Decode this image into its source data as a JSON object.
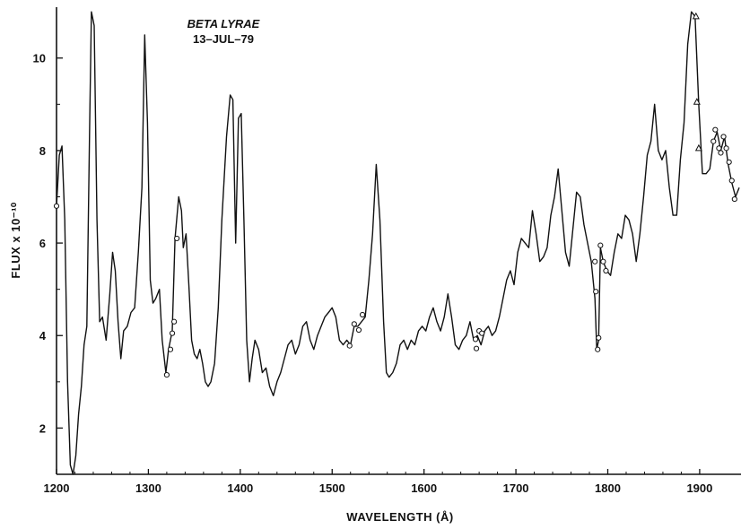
{
  "chart_data": {
    "type": "line",
    "title": "",
    "annotation": {
      "line1": "BETA LYRAE",
      "line2": "13–JUL–79"
    },
    "xlabel": "WAVELENGTH (Å)",
    "ylabel": "FLUX x 10⁻¹⁰",
    "xlim": [
      1200,
      1945
    ],
    "ylim": [
      1,
      11.1
    ],
    "xticks": [
      1200,
      1300,
      1400,
      1500,
      1600,
      1700,
      1800,
      1900
    ],
    "xtick_labels": [
      "1200",
      "1300",
      "1400",
      "1500",
      "1600",
      "1700",
      "1800",
      "1900"
    ],
    "yticks": [
      2,
      4,
      6,
      8,
      10
    ],
    "ytick_labels": [
      "2",
      "4",
      "6",
      "8",
      "10"
    ],
    "grid": false,
    "series": [
      {
        "values": [
          [
            1200,
            6.8
          ],
          [
            1203,
            7.9
          ],
          [
            1206,
            8.1
          ],
          [
            1209,
            6.5
          ],
          [
            1212,
            3.0
          ],
          [
            1215,
            1.2
          ],
          [
            1218,
            0.9
          ],
          [
            1221,
            1.4
          ],
          [
            1224,
            2.3
          ],
          [
            1227,
            2.9
          ],
          [
            1230,
            3.8
          ],
          [
            1233,
            4.2
          ],
          [
            1236,
            8.5
          ],
          [
            1238,
            11.0
          ],
          [
            1241,
            10.7
          ],
          [
            1244,
            6.5
          ],
          [
            1247,
            4.3
          ],
          [
            1250,
            4.4
          ],
          [
            1254,
            3.9
          ],
          [
            1258,
            4.9
          ],
          [
            1261,
            5.8
          ],
          [
            1264,
            5.4
          ],
          [
            1267,
            4.3
          ],
          [
            1270,
            3.5
          ],
          [
            1273,
            4.1
          ],
          [
            1277,
            4.2
          ],
          [
            1281,
            4.5
          ],
          [
            1285,
            4.6
          ],
          [
            1289,
            5.8
          ],
          [
            1293,
            7.2
          ],
          [
            1296,
            10.5
          ],
          [
            1299,
            8.6
          ],
          [
            1302,
            5.2
          ],
          [
            1305,
            4.7
          ],
          [
            1308,
            4.8
          ],
          [
            1312,
            5.0
          ],
          [
            1315,
            3.9
          ],
          [
            1319,
            3.2
          ],
          [
            1322,
            3.7
          ],
          [
            1326,
            4.1
          ],
          [
            1329,
            6.1
          ],
          [
            1333,
            7.0
          ],
          [
            1336,
            6.7
          ],
          [
            1338,
            5.9
          ],
          [
            1341,
            6.2
          ],
          [
            1344,
            5.1
          ],
          [
            1347,
            3.9
          ],
          [
            1350,
            3.6
          ],
          [
            1353,
            3.5
          ],
          [
            1356,
            3.7
          ],
          [
            1359,
            3.4
          ],
          [
            1362,
            3.0
          ],
          [
            1365,
            2.9
          ],
          [
            1368,
            3.0
          ],
          [
            1372,
            3.4
          ],
          [
            1376,
            4.6
          ],
          [
            1380,
            6.5
          ],
          [
            1385,
            8.3
          ],
          [
            1389,
            9.2
          ],
          [
            1392,
            9.1
          ],
          [
            1395,
            6.0
          ],
          [
            1398,
            8.7
          ],
          [
            1401,
            8.8
          ],
          [
            1404,
            6.5
          ],
          [
            1407,
            3.9
          ],
          [
            1410,
            3.0
          ],
          [
            1413,
            3.5
          ],
          [
            1416,
            3.9
          ],
          [
            1420,
            3.7
          ],
          [
            1424,
            3.2
          ],
          [
            1428,
            3.3
          ],
          [
            1432,
            2.9
          ],
          [
            1436,
            2.7
          ],
          [
            1440,
            3.0
          ],
          [
            1444,
            3.2
          ],
          [
            1448,
            3.5
          ],
          [
            1452,
            3.8
          ],
          [
            1456,
            3.9
          ],
          [
            1460,
            3.6
          ],
          [
            1464,
            3.8
          ],
          [
            1468,
            4.2
          ],
          [
            1472,
            4.3
          ],
          [
            1476,
            3.9
          ],
          [
            1480,
            3.7
          ],
          [
            1484,
            4.0
          ],
          [
            1488,
            4.2
          ],
          [
            1492,
            4.4
          ],
          [
            1496,
            4.5
          ],
          [
            1500,
            4.6
          ],
          [
            1504,
            4.4
          ],
          [
            1508,
            3.9
          ],
          [
            1512,
            3.8
          ],
          [
            1516,
            3.9
          ],
          [
            1520,
            3.8
          ],
          [
            1524,
            4.2
          ],
          [
            1528,
            4.2
          ],
          [
            1532,
            4.3
          ],
          [
            1536,
            4.4
          ],
          [
            1540,
            5.2
          ],
          [
            1544,
            6.2
          ],
          [
            1548,
            7.7
          ],
          [
            1552,
            6.5
          ],
          [
            1556,
            4.3
          ],
          [
            1559,
            3.2
          ],
          [
            1562,
            3.1
          ],
          [
            1566,
            3.2
          ],
          [
            1570,
            3.4
          ],
          [
            1574,
            3.8
          ],
          [
            1578,
            3.9
          ],
          [
            1582,
            3.7
          ],
          [
            1586,
            3.9
          ],
          [
            1590,
            3.8
          ],
          [
            1594,
            4.1
          ],
          [
            1598,
            4.2
          ],
          [
            1602,
            4.1
          ],
          [
            1606,
            4.4
          ],
          [
            1610,
            4.6
          ],
          [
            1614,
            4.3
          ],
          [
            1618,
            4.1
          ],
          [
            1622,
            4.4
          ],
          [
            1626,
            4.9
          ],
          [
            1630,
            4.4
          ],
          [
            1634,
            3.8
          ],
          [
            1638,
            3.7
          ],
          [
            1642,
            3.9
          ],
          [
            1646,
            4.0
          ],
          [
            1650,
            4.3
          ],
          [
            1654,
            3.9
          ],
          [
            1658,
            4.0
          ],
          [
            1662,
            3.8
          ],
          [
            1666,
            4.1
          ],
          [
            1670,
            4.2
          ],
          [
            1674,
            4.0
          ],
          [
            1678,
            4.1
          ],
          [
            1682,
            4.4
          ],
          [
            1686,
            4.8
          ],
          [
            1690,
            5.2
          ],
          [
            1694,
            5.4
          ],
          [
            1698,
            5.1
          ],
          [
            1702,
            5.8
          ],
          [
            1706,
            6.1
          ],
          [
            1710,
            6.0
          ],
          [
            1714,
            5.9
          ],
          [
            1718,
            6.7
          ],
          [
            1722,
            6.2
          ],
          [
            1726,
            5.6
          ],
          [
            1730,
            5.7
          ],
          [
            1734,
            5.9
          ],
          [
            1738,
            6.6
          ],
          [
            1742,
            7.0
          ],
          [
            1746,
            7.6
          ],
          [
            1750,
            6.7
          ],
          [
            1754,
            5.8
          ],
          [
            1758,
            5.5
          ],
          [
            1762,
            6.3
          ],
          [
            1766,
            7.1
          ],
          [
            1770,
            7.0
          ],
          [
            1774,
            6.4
          ],
          [
            1778,
            6.0
          ],
          [
            1782,
            5.6
          ],
          [
            1786,
            4.8
          ],
          [
            1788,
            3.7
          ],
          [
            1790,
            3.9
          ],
          [
            1792,
            5.9
          ],
          [
            1795,
            5.6
          ],
          [
            1799,
            5.4
          ],
          [
            1803,
            5.3
          ],
          [
            1807,
            5.8
          ],
          [
            1811,
            6.2
          ],
          [
            1815,
            6.1
          ],
          [
            1819,
            6.6
          ],
          [
            1823,
            6.5
          ],
          [
            1827,
            6.2
          ],
          [
            1831,
            5.6
          ],
          [
            1835,
            6.2
          ],
          [
            1839,
            7.0
          ],
          [
            1843,
            7.9
          ],
          [
            1847,
            8.2
          ],
          [
            1851,
            9.0
          ],
          [
            1855,
            8.0
          ],
          [
            1859,
            7.8
          ],
          [
            1863,
            8.0
          ],
          [
            1867,
            7.2
          ],
          [
            1871,
            6.6
          ],
          [
            1875,
            6.6
          ],
          [
            1879,
            7.8
          ],
          [
            1883,
            8.6
          ],
          [
            1887,
            10.3
          ],
          [
            1891,
            11.0
          ],
          [
            1895,
            10.9
          ],
          [
            1899,
            9.0
          ],
          [
            1903,
            7.5
          ],
          [
            1907,
            7.5
          ],
          [
            1911,
            7.6
          ],
          [
            1915,
            8.2
          ],
          [
            1919,
            8.4
          ],
          [
            1923,
            8.0
          ],
          [
            1927,
            8.3
          ],
          [
            1931,
            7.7
          ],
          [
            1935,
            7.3
          ],
          [
            1939,
            7.0
          ],
          [
            1943,
            7.2
          ]
        ]
      }
    ],
    "circle_markers": [
      [
        1200,
        6.8
      ],
      [
        1320,
        3.15
      ],
      [
        1324,
        3.7
      ],
      [
        1326,
        4.05
      ],
      [
        1328,
        4.3
      ],
      [
        1331,
        6.1
      ],
      [
        1519,
        3.78
      ],
      [
        1524,
        4.25
      ],
      [
        1529,
        4.12
      ],
      [
        1533,
        4.45
      ],
      [
        1656,
        3.92
      ],
      [
        1657,
        3.72
      ],
      [
        1660,
        4.1
      ],
      [
        1663,
        4.05
      ],
      [
        1786,
        5.6
      ],
      [
        1787,
        4.95
      ],
      [
        1789,
        3.7
      ],
      [
        1790,
        3.95
      ],
      [
        1792,
        5.95
      ],
      [
        1795,
        5.6
      ],
      [
        1798,
        5.4
      ],
      [
        1915,
        8.2
      ],
      [
        1917,
        8.45
      ],
      [
        1921,
        8.05
      ],
      [
        1923,
        7.95
      ],
      [
        1926,
        8.3
      ],
      [
        1929,
        8.05
      ],
      [
        1932,
        7.75
      ],
      [
        1935,
        7.35
      ],
      [
        1938,
        6.95
      ]
    ],
    "triangle_markers": [
      [
        1896,
        10.9
      ],
      [
        1897,
        9.05
      ],
      [
        1899,
        8.05
      ]
    ]
  }
}
